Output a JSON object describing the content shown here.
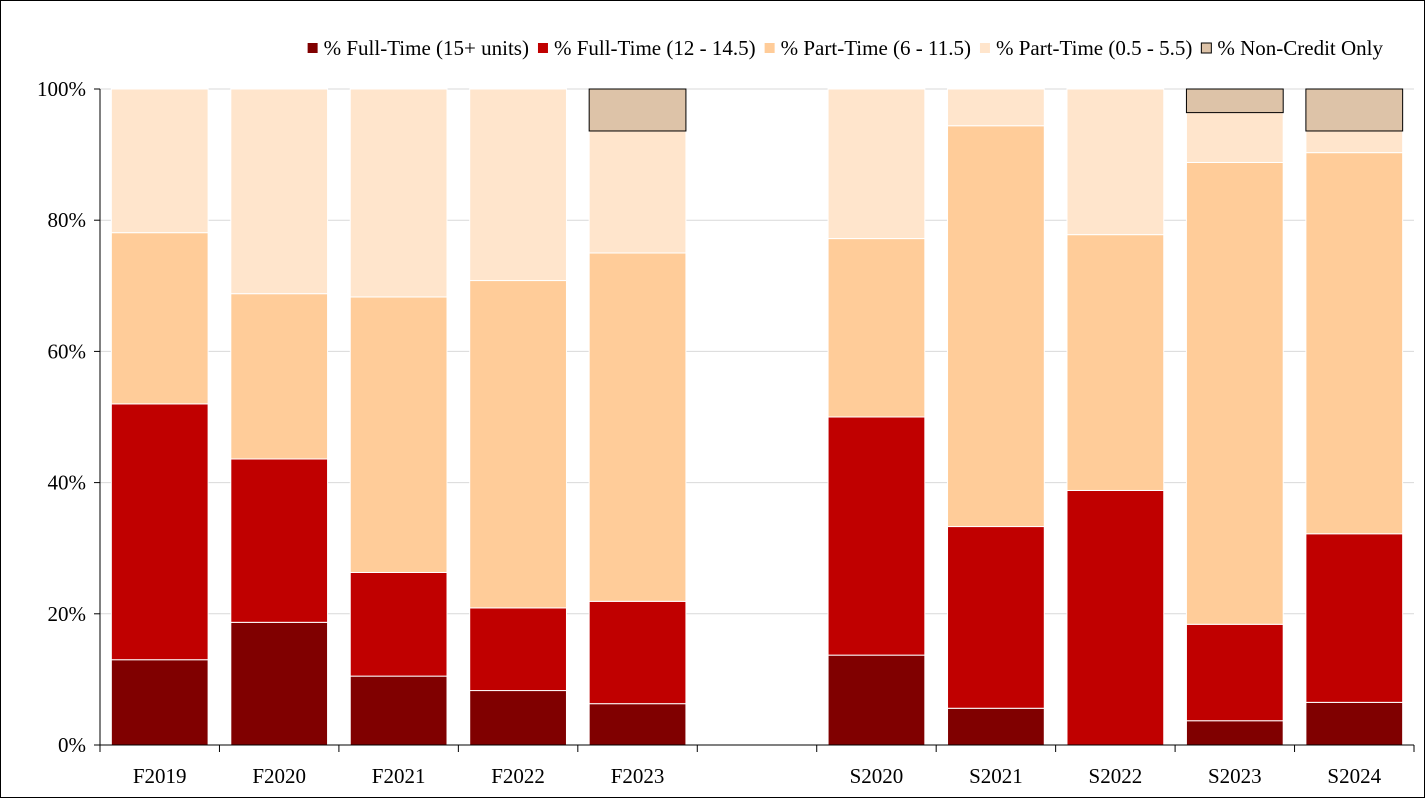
{
  "chart_data": {
    "type": "bar",
    "stacked": true,
    "normalized": true,
    "title": "",
    "xlabel": "",
    "ylabel": "",
    "ylim": [
      0,
      100
    ],
    "yticks": [
      "0%",
      "20%",
      "40%",
      "60%",
      "80%",
      "100%"
    ],
    "ytick_values": [
      0,
      20,
      40,
      60,
      80,
      100
    ],
    "categories": [
      "F2019",
      "F2020",
      "F2021",
      "F2022",
      "F2023",
      "",
      "S2020",
      "S2021",
      "S2022",
      "S2023",
      "S2024"
    ],
    "legend_position": "top",
    "grid": true,
    "series": [
      {
        "name": "% Full-Time (15+ units)",
        "color": "#800000",
        "values": [
          13.0,
          18.7,
          10.5,
          8.3,
          6.3,
          null,
          13.7,
          5.6,
          0,
          3.7,
          6.5
        ]
      },
      {
        "name": "% Full-Time (12 - 14.5)",
        "color": "#C00000",
        "values": [
          39.0,
          24.9,
          15.8,
          12.6,
          15.6,
          null,
          36.3,
          27.7,
          38.8,
          14.7,
          25.7
        ]
      },
      {
        "name": "% Part-Time (6 - 11.5)",
        "color": "#FFCC99",
        "values": [
          26.1,
          25.2,
          42.0,
          49.9,
          53.1,
          null,
          27.2,
          61.1,
          39.0,
          70.4,
          58.1
        ]
      },
      {
        "name": "% Part-Time (0.5 - 5.5)",
        "color": "#FFE5CC",
        "values": [
          21.9,
          31.2,
          31.7,
          29.2,
          18.6,
          null,
          22.8,
          5.6,
          22.2,
          7.6,
          3.3
        ]
      },
      {
        "name": "% Non-Credit Only",
        "color": "#DDC3A8",
        "values": [
          0,
          0,
          0,
          0,
          6.4,
          null,
          0,
          0,
          0,
          3.6,
          6.4
        ]
      }
    ]
  }
}
